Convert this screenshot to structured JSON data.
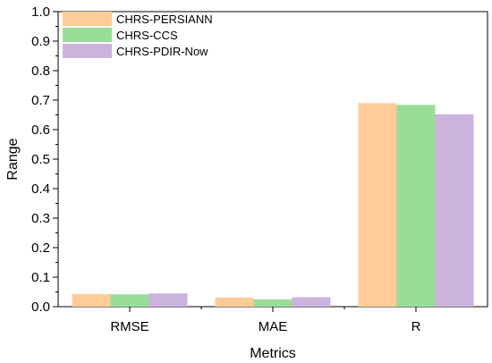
{
  "chart_data": {
    "type": "bar",
    "categories": [
      "RMSE",
      "MAE",
      "R"
    ],
    "series": [
      {
        "name": "CHRS-PERSIANN",
        "values": [
          0.043,
          0.031,
          0.69
        ],
        "color": "#FFCC99"
      },
      {
        "name": "CHRS-CCS",
        "values": [
          0.042,
          0.025,
          0.684
        ],
        "color": "#99DD99"
      },
      {
        "name": "CHRS-PDIR-Now",
        "values": [
          0.045,
          0.032,
          0.652
        ],
        "color": "#CCB3DD"
      }
    ],
    "xlabel": "Metrics",
    "ylabel": "Range",
    "ylim": [
      0,
      1.0
    ],
    "yticks": [
      "0.0",
      "0.1",
      "0.2",
      "0.3",
      "0.4",
      "0.5",
      "0.6",
      "0.7",
      "0.8",
      "0.9",
      "1.0"
    ],
    "grid": false,
    "legend_position": "top-left"
  }
}
